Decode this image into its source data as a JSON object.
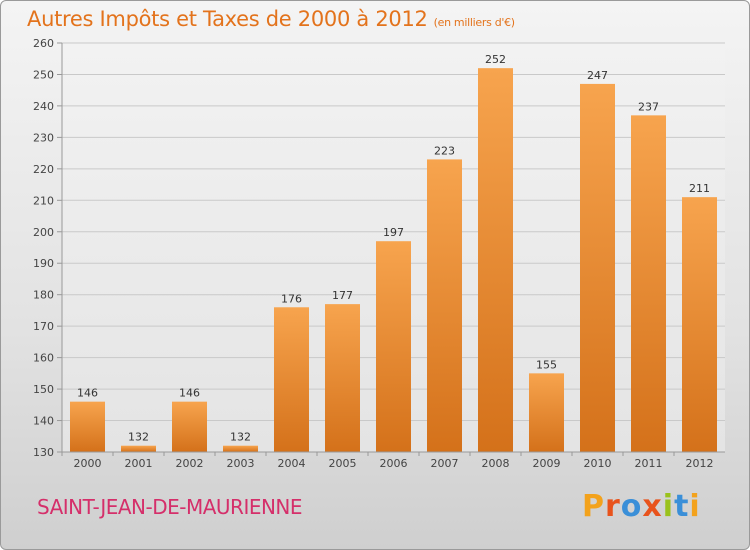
{
  "title": "Autres Impôts et Taxes de 2000 à 2012",
  "subtitle": "(en milliers d'€)",
  "commune": "SAINT-JEAN-DE-MAURIENNE",
  "logo": {
    "text": "Proxiti",
    "colors": [
      "#f3a21c",
      "#e8531c",
      "#3a8fd8",
      "#e8531c",
      "#9ac21c",
      "#3a8fd8",
      "#f3a21c"
    ]
  },
  "colors": {
    "title": "#e3731c",
    "commune": "#d52f6a",
    "bar_top": "#f7a44e",
    "bar_bottom": "#d4711a"
  },
  "chart_data": {
    "type": "bar",
    "categories": [
      "2000",
      "2001",
      "2002",
      "2003",
      "2004",
      "2005",
      "2006",
      "2007",
      "2008",
      "2009",
      "2010",
      "2011",
      "2012"
    ],
    "values": [
      146,
      132,
      146,
      132,
      176,
      177,
      197,
      223,
      252,
      155,
      247,
      237,
      211
    ],
    "ylim": [
      130,
      260
    ],
    "yticks": [
      130,
      140,
      150,
      160,
      170,
      180,
      190,
      200,
      210,
      220,
      230,
      240,
      250,
      260
    ],
    "grid": true,
    "data_labels": true
  }
}
